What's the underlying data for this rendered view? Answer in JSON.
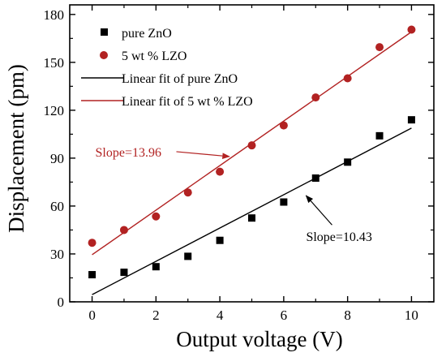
{
  "chart_data": {
    "type": "scatter",
    "xlabel": "Output voltage (V)",
    "ylabel": "Displacement (pm)",
    "xlim": [
      -0.7,
      10.7
    ],
    "ylim": [
      0,
      186
    ],
    "xticks": [
      0,
      2,
      4,
      6,
      8,
      10
    ],
    "yticks": [
      0,
      30,
      60,
      90,
      120,
      150,
      180
    ],
    "legend_position": "top-left",
    "series": [
      {
        "name": "pure ZnO",
        "marker": "square",
        "color": "#000000",
        "x": [
          0,
          1,
          2,
          3,
          4,
          5,
          6,
          7,
          8,
          9,
          10
        ],
        "y": [
          17,
          18.5,
          22,
          28.5,
          38.5,
          52.5,
          62.5,
          77.5,
          87.5,
          104,
          114
        ]
      },
      {
        "name": "5 wt % LZO",
        "marker": "circle",
        "color": "#b22222",
        "x": [
          0,
          1,
          2,
          3,
          4,
          5,
          6,
          7,
          8,
          9,
          10
        ],
        "y": [
          37,
          45,
          53.5,
          68.5,
          81.5,
          98,
          110.5,
          128,
          140,
          159.5,
          170.5
        ]
      }
    ],
    "fits": [
      {
        "name": "Linear fit of pure ZnO",
        "color": "#000000",
        "x": [
          0,
          10
        ],
        "y": [
          4.5,
          108.8
        ]
      },
      {
        "name": "Linear fit of 5 wt % LZO",
        "color": "#b22222",
        "x": [
          0,
          10
        ],
        "y": [
          29.5,
          169.1
        ]
      }
    ],
    "annotations": [
      {
        "text": "Slope=13.96",
        "color": "#b22222",
        "text_at": [
          0.1,
          91
        ],
        "arrow_to": [
          4.3,
          91
        ]
      },
      {
        "text": "Slope=10.43",
        "color": "#000000",
        "text_at": [
          6.7,
          38
        ],
        "arrow_to": [
          6.7,
          66.5
        ]
      }
    ]
  }
}
